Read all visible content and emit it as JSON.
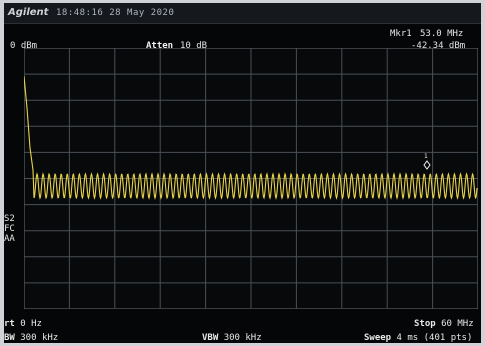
{
  "instrument": {
    "brand": "Agilent",
    "timestamp": "18:48:16 28 May 2020"
  },
  "header": {
    "ref_level": "0 dBm",
    "atten_label": "Atten",
    "atten_value": "10 dB",
    "marker_label": "Mkr1",
    "marker_freq": "53.0 MHz",
    "marker_level": "-42.34 dBm"
  },
  "side_labels": {
    "s2": "S2",
    "fc": "FC",
    "aa": "AA"
  },
  "footer": {
    "start_label": "rt",
    "start_value": "0 Hz",
    "stop_label": "Stop",
    "stop_value": "60 MHz",
    "rbw_label": "BW",
    "rbw_value": "300 kHz",
    "vbw_label": "VBW",
    "vbw_value": "300 kHz",
    "sweep_label": "Sweep",
    "sweep_value": "4 ms (401 pts)"
  },
  "trace": {
    "color": "#e9d44a",
    "marker_number": "1",
    "marker_freq_mhz": 53.0,
    "marker_level_dbm": -42.34,
    "span_mhz": [
      0,
      60
    ]
  }
}
